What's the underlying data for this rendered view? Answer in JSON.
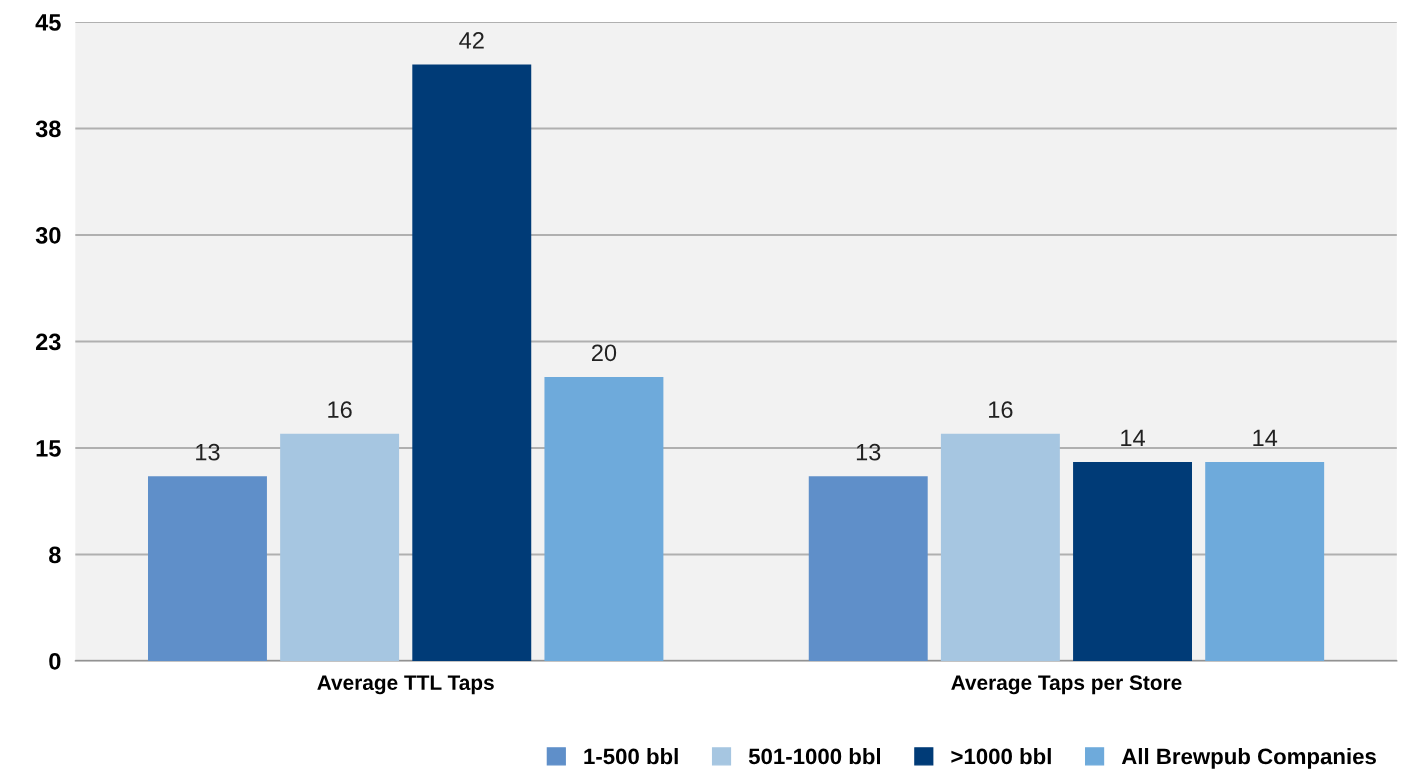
{
  "chart_data": {
    "type": "bar",
    "categories": [
      "Average TTL Taps",
      "Average Taps per Store"
    ],
    "series": [
      {
        "name": "1-500 bbl",
        "color": "#5f8fc9",
        "values": [
          13,
          13
        ]
      },
      {
        "name": "501-1000 bbl",
        "color": "#a6c6e1",
        "values": [
          16,
          16
        ]
      },
      {
        "name": ">1000 bbl",
        "color": "#003b77",
        "values": [
          42,
          14
        ]
      },
      {
        "name": "All Brewpub Companies",
        "color": "#6eaadb",
        "values": [
          20,
          14
        ]
      }
    ],
    "ylim": [
      0,
      45
    ],
    "yticks": [
      0,
      {
        "value": 7.5,
        "label": "8"
      },
      15,
      {
        "value": 22.5,
        "label": "23"
      },
      30,
      {
        "value": 37.5,
        "label": "38"
      },
      45
    ],
    "grid": "y",
    "legend": "bottom right",
    "data_labels": true
  }
}
